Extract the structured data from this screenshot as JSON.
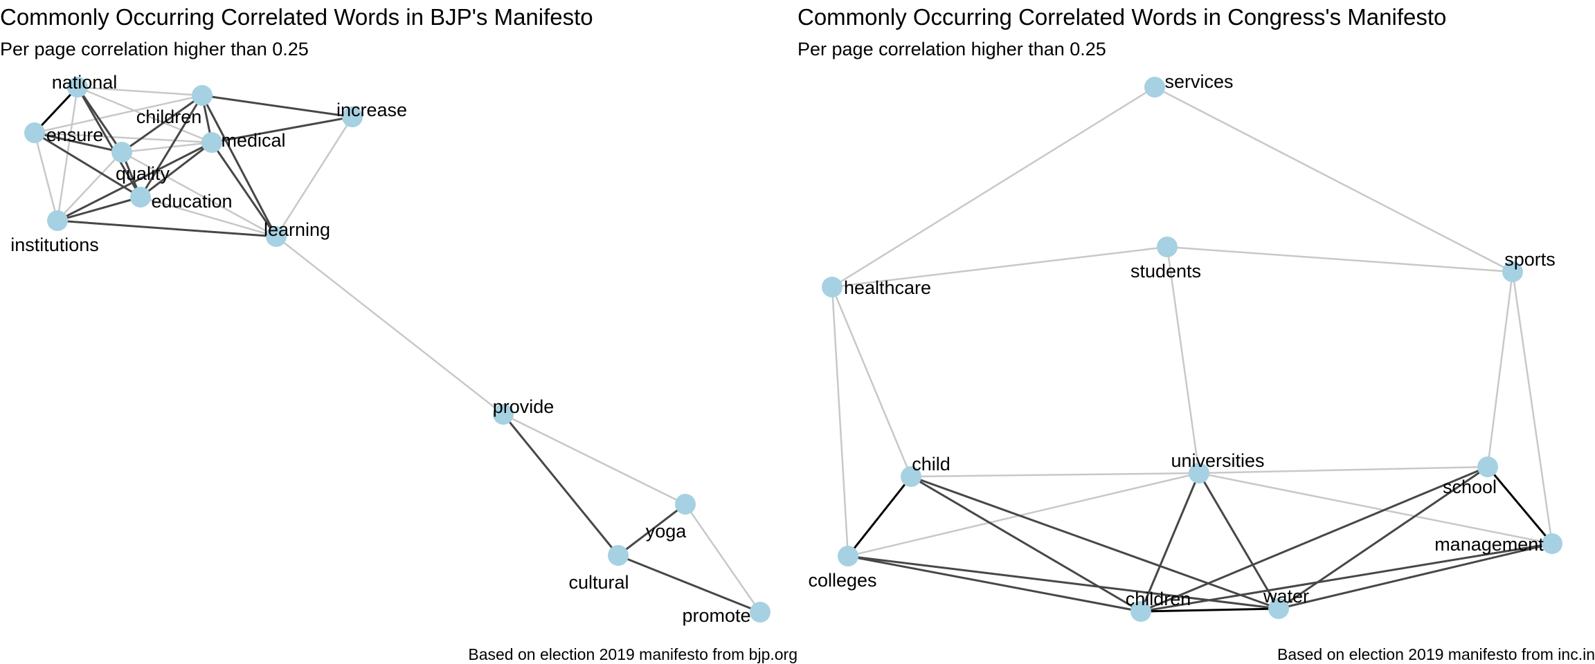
{
  "colors": {
    "node": "#a6d1e2",
    "edge_weak": "#c8c8c8",
    "edge_medium": "#474747",
    "edge_strong": "#000000"
  },
  "panels": [
    {
      "id": "bjp",
      "title": "Commonly Occurring Correlated Words in BJP's Manifesto",
      "subtitle": "Per page correlation higher than 0.25",
      "caption": "Based on election 2019 manifesto from bjp.org",
      "nodes": [
        "national",
        "children",
        "increase",
        "ensure",
        "medical",
        "quality",
        "education",
        "institutions",
        "learning",
        "provide",
        "yoga",
        "cultural",
        "promote"
      ],
      "edges": [
        {
          "source": "national",
          "target": "ensure",
          "strength": "strong"
        },
        {
          "source": "national",
          "target": "children",
          "strength": "weak"
        },
        {
          "source": "national",
          "target": "quality",
          "strength": "medium"
        },
        {
          "source": "national",
          "target": "education",
          "strength": "medium"
        },
        {
          "source": "national",
          "target": "medical",
          "strength": "weak"
        },
        {
          "source": "national",
          "target": "institutions",
          "strength": "weak"
        },
        {
          "source": "children",
          "target": "increase",
          "strength": "medium"
        },
        {
          "source": "children",
          "target": "medical",
          "strength": "medium"
        },
        {
          "source": "children",
          "target": "quality",
          "strength": "medium"
        },
        {
          "source": "children",
          "target": "education",
          "strength": "medium"
        },
        {
          "source": "children",
          "target": "learning",
          "strength": "medium"
        },
        {
          "source": "children",
          "target": "ensure",
          "strength": "weak"
        },
        {
          "source": "ensure",
          "target": "quality",
          "strength": "medium"
        },
        {
          "source": "ensure",
          "target": "education",
          "strength": "medium"
        },
        {
          "source": "ensure",
          "target": "medical",
          "strength": "weak"
        },
        {
          "source": "ensure",
          "target": "institutions",
          "strength": "weak"
        },
        {
          "source": "medical",
          "target": "increase",
          "strength": "medium"
        },
        {
          "source": "medical",
          "target": "quality",
          "strength": "weak"
        },
        {
          "source": "medical",
          "target": "education",
          "strength": "medium"
        },
        {
          "source": "medical",
          "target": "institutions",
          "strength": "medium"
        },
        {
          "source": "medical",
          "target": "learning",
          "strength": "medium"
        },
        {
          "source": "quality",
          "target": "education",
          "strength": "medium"
        },
        {
          "source": "quality",
          "target": "institutions",
          "strength": "weak"
        },
        {
          "source": "quality",
          "target": "learning",
          "strength": "weak"
        },
        {
          "source": "education",
          "target": "institutions",
          "strength": "medium"
        },
        {
          "source": "education",
          "target": "learning",
          "strength": "weak"
        },
        {
          "source": "institutions",
          "target": "learning",
          "strength": "medium"
        },
        {
          "source": "increase",
          "target": "learning",
          "strength": "weak"
        },
        {
          "source": "learning",
          "target": "provide",
          "strength": "weak"
        },
        {
          "source": "provide",
          "target": "yoga",
          "strength": "weak"
        },
        {
          "source": "provide",
          "target": "cultural",
          "strength": "medium"
        },
        {
          "source": "yoga",
          "target": "cultural",
          "strength": "medium"
        },
        {
          "source": "yoga",
          "target": "promote",
          "strength": "weak"
        },
        {
          "source": "cultural",
          "target": "promote",
          "strength": "medium"
        }
      ]
    },
    {
      "id": "inc",
      "title": "Commonly Occurring Correlated Words in Congress's Manifesto",
      "subtitle": "Per page correlation higher than 0.25",
      "caption": "Based on election 2019 manifesto from inc.in",
      "nodes": [
        "services",
        "students",
        "healthcare",
        "sports",
        "child",
        "universities",
        "school",
        "management",
        "colleges",
        "children",
        "water"
      ],
      "edges": [
        {
          "source": "services",
          "target": "healthcare",
          "strength": "weak"
        },
        {
          "source": "services",
          "target": "sports",
          "strength": "weak"
        },
        {
          "source": "students",
          "target": "healthcare",
          "strength": "weak"
        },
        {
          "source": "students",
          "target": "sports",
          "strength": "weak"
        },
        {
          "source": "students",
          "target": "universities",
          "strength": "weak"
        },
        {
          "source": "healthcare",
          "target": "child",
          "strength": "weak"
        },
        {
          "source": "healthcare",
          "target": "colleges",
          "strength": "weak"
        },
        {
          "source": "sports",
          "target": "school",
          "strength": "weak"
        },
        {
          "source": "sports",
          "target": "management",
          "strength": "weak"
        },
        {
          "source": "child",
          "target": "universities",
          "strength": "weak"
        },
        {
          "source": "child",
          "target": "colleges",
          "strength": "strong"
        },
        {
          "source": "child",
          "target": "children",
          "strength": "medium"
        },
        {
          "source": "child",
          "target": "water",
          "strength": "medium"
        },
        {
          "source": "universities",
          "target": "school",
          "strength": "weak"
        },
        {
          "source": "universities",
          "target": "colleges",
          "strength": "weak"
        },
        {
          "source": "universities",
          "target": "management",
          "strength": "weak"
        },
        {
          "source": "universities",
          "target": "children",
          "strength": "medium"
        },
        {
          "source": "universities",
          "target": "water",
          "strength": "medium"
        },
        {
          "source": "school",
          "target": "management",
          "strength": "strong"
        },
        {
          "source": "school",
          "target": "children",
          "strength": "medium"
        },
        {
          "source": "school",
          "target": "water",
          "strength": "medium"
        },
        {
          "source": "colleges",
          "target": "children",
          "strength": "medium"
        },
        {
          "source": "colleges",
          "target": "water",
          "strength": "medium"
        },
        {
          "source": "children",
          "target": "water",
          "strength": "strong"
        },
        {
          "source": "children",
          "target": "management",
          "strength": "medium"
        },
        {
          "source": "water",
          "target": "management",
          "strength": "medium"
        }
      ]
    }
  ]
}
